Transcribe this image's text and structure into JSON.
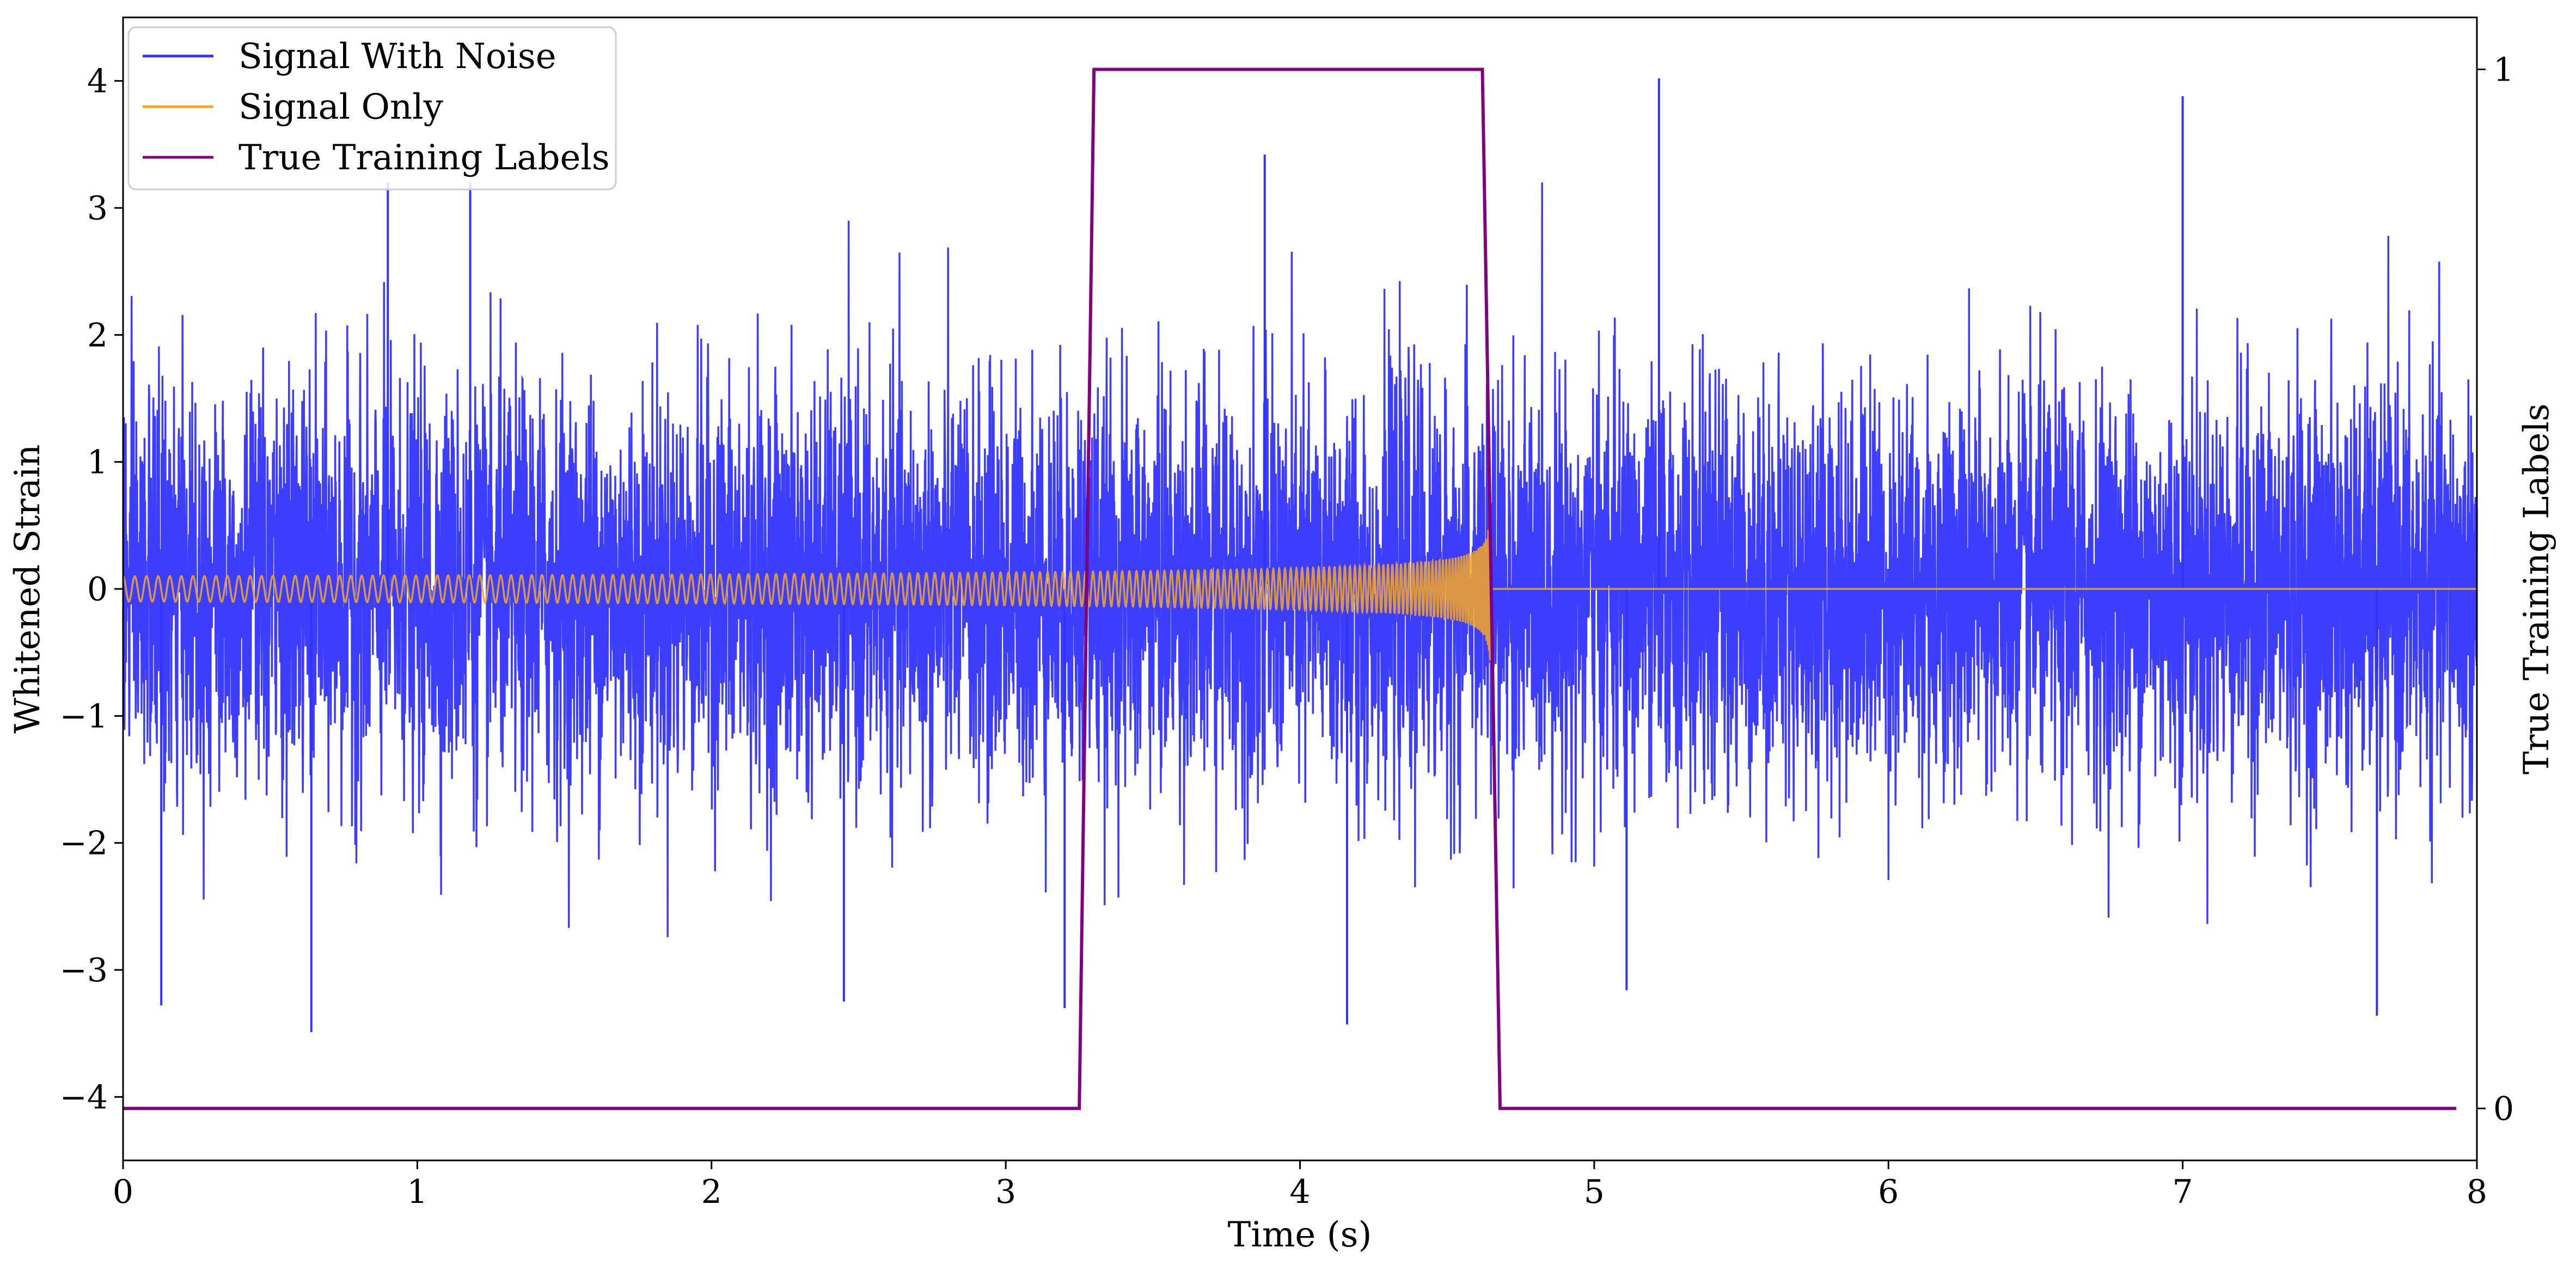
{
  "chart_data": {
    "type": "line",
    "title": "",
    "xlabel": "Time (s)",
    "ylabel": "Whitened Strain",
    "y2label": "True Training Labels",
    "xlim": [
      0,
      8
    ],
    "ylim": [
      -4.5,
      4.5
    ],
    "y2lim": [
      -0.05,
      1.05
    ],
    "x_ticks": [
      0,
      1,
      2,
      3,
      4,
      5,
      6,
      7,
      8
    ],
    "x_tick_labels": [
      "0",
      "1",
      "2",
      "3",
      "4",
      "5",
      "6",
      "7",
      "8"
    ],
    "y_ticks": [
      -4,
      -3,
      -2,
      -1,
      0,
      1,
      2,
      3,
      4
    ],
    "y_tick_labels": [
      "−4",
      "−3",
      "−2",
      "−1",
      "0",
      "1",
      "2",
      "3",
      "4"
    ],
    "y2_ticks": [
      0,
      1
    ],
    "y2_tick_labels": [
      "0",
      "1"
    ],
    "grid": false,
    "legend_position": "top-left",
    "series": [
      {
        "name": "Signal With Noise",
        "axis": "left",
        "color": "#3333ff",
        "description_values": {
          "approx_abs_mean": 0.8,
          "approx_envelope_typical": [
            -2.0,
            2.2
          ],
          "extremes": [
            {
              "x": 0.13,
              "y": -3.28
            },
            {
              "x": 0.64,
              "y": -3.49
            },
            {
              "x": 0.9,
              "y": 3.2
            },
            {
              "x": 1.18,
              "y": 3.2
            },
            {
              "x": 2.45,
              "y": -3.25
            },
            {
              "x": 3.2,
              "y": -3.3
            },
            {
              "x": 3.88,
              "y": 3.42
            },
            {
              "x": 4.16,
              "y": -3.43
            },
            {
              "x": 5.11,
              "y": -3.16
            },
            {
              "x": 5.22,
              "y": 4.02
            },
            {
              "x": 7.0,
              "y": 3.88
            },
            {
              "x": 7.66,
              "y": -3.36
            }
          ]
        }
      },
      {
        "name": "Signal Only",
        "axis": "left",
        "color": "#f5a623",
        "description_values": {
          "type": "chirp",
          "start_x": 0,
          "merger_x": 4.65,
          "start_amplitude": 0.1,
          "merger_amplitude": 1.0,
          "post_merger_value": 0
        }
      },
      {
        "name": "True Training Labels",
        "axis": "right",
        "color": "#800080",
        "points": [
          [
            0,
            0
          ],
          [
            3.25,
            0
          ],
          [
            3.3,
            1
          ],
          [
            4.62,
            1
          ],
          [
            4.68,
            0
          ],
          [
            7.93,
            0
          ]
        ]
      }
    ]
  }
}
